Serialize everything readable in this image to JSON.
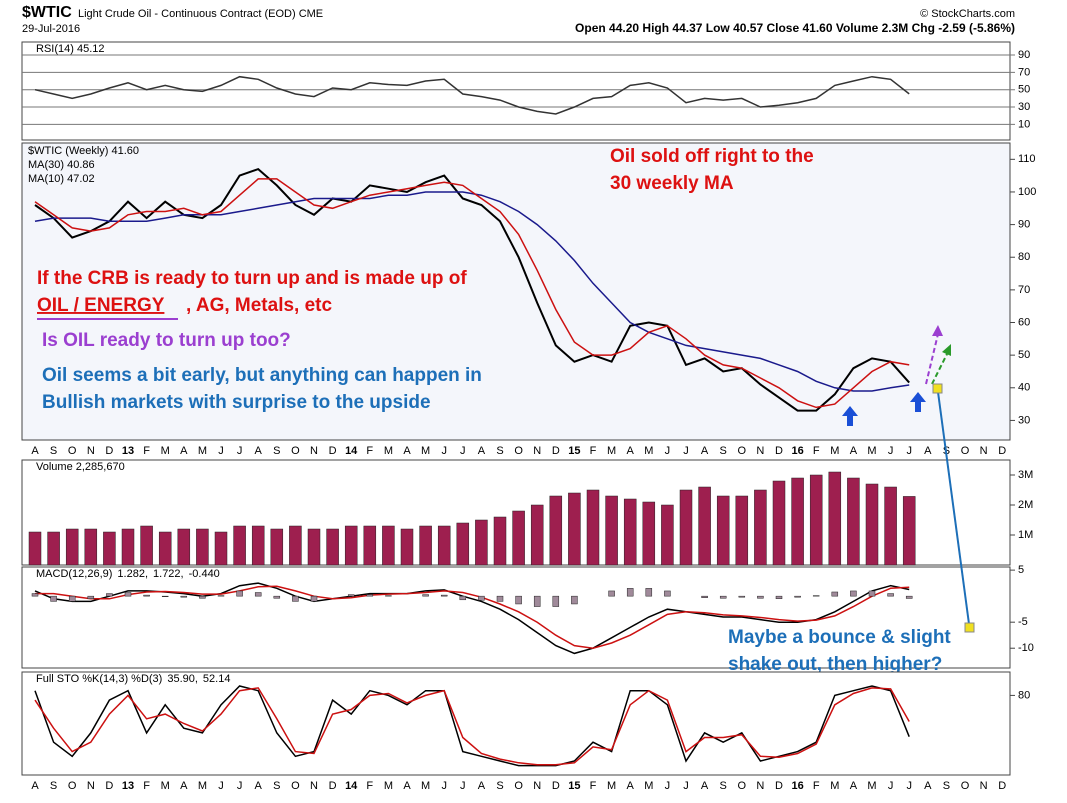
{
  "header": {
    "symbol": "$WTIC",
    "name": "Light Crude Oil - Continuous Contract (EOD) CME",
    "date": "29-Jul-2016",
    "quote": "Open 44.20  High 44.37  Low 40.57  Close 41.60  Volume 2.3M  Chg -2.59 (-5.86%)",
    "source": "© StockCharts.com"
  },
  "chart_data": [
    {
      "type": "line",
      "ylim": [
        -8,
        105
      ],
      "yticks": [
        10,
        30,
        50,
        70,
        90
      ],
      "grid": true,
      "series": [
        {
          "name": "RSI(14) 45.12",
          "color": "#333333",
          "values": [
            50,
            45,
            40,
            45,
            52,
            58,
            50,
            55,
            50,
            48,
            55,
            65,
            62,
            52,
            45,
            42,
            52,
            50,
            58,
            56,
            55,
            60,
            62,
            45,
            42,
            38,
            30,
            25,
            22,
            30,
            40,
            42,
            55,
            58,
            52,
            35,
            40,
            38,
            40,
            30,
            32,
            35,
            40,
            55,
            60,
            65,
            62,
            45.12,
            null,
            null,
            null,
            null,
            null
          ]
        }
      ]
    },
    {
      "type": "line",
      "ylim": [
        24,
        115
      ],
      "yticks": [
        30,
        40,
        50,
        60,
        70,
        80,
        90,
        100,
        110
      ],
      "categories": [
        "A",
        "S",
        "O",
        "N",
        "D",
        "13",
        "F",
        "M",
        "A",
        "M",
        "J",
        "J",
        "A",
        "S",
        "O",
        "N",
        "D",
        "14",
        "F",
        "M",
        "A",
        "M",
        "J",
        "J",
        "A",
        "S",
        "O",
        "N",
        "D",
        "15",
        "F",
        "M",
        "A",
        "M",
        "J",
        "J",
        "A",
        "S",
        "O",
        "N",
        "D",
        "16",
        "F",
        "M",
        "A",
        "M",
        "J",
        "J",
        "A",
        "S",
        "O",
        "N",
        "D"
      ],
      "series": [
        {
          "name": "$WTIC (Weekly) 41.60",
          "color": "#000000",
          "values": [
            96,
            92,
            86,
            88,
            91,
            97,
            92,
            97,
            93,
            92,
            96,
            105,
            107,
            102,
            96,
            93,
            98,
            97,
            102,
            101,
            100,
            103,
            105,
            98,
            96,
            91,
            80,
            66,
            53,
            48,
            50,
            48,
            59,
            60,
            59,
            47,
            49,
            45,
            46,
            41,
            37,
            33,
            33,
            38,
            46,
            49,
            48,
            41.6,
            null,
            null,
            null,
            null,
            null
          ]
        },
        {
          "name": "MA(30) 40.86",
          "color": "#1a1a8c",
          "values": [
            91,
            92,
            92,
            92,
            91,
            91,
            91,
            92,
            93,
            93,
            93,
            94,
            95,
            96,
            97,
            98,
            98,
            98,
            98,
            99,
            99,
            100,
            100,
            100,
            99,
            97,
            94,
            90,
            85,
            79,
            72,
            66,
            60,
            57,
            55,
            53,
            52,
            51,
            50,
            49,
            47,
            45,
            42,
            40,
            39,
            39,
            40,
            40.86,
            null,
            null,
            null,
            null,
            null
          ]
        },
        {
          "name": "MA(10) 47.02",
          "color": "#cc1111",
          "values": [
            97,
            93,
            89,
            88,
            89,
            93,
            94,
            94,
            95,
            93,
            94,
            99,
            104,
            104,
            100,
            96,
            95,
            97,
            99,
            100,
            101,
            102,
            103,
            102,
            98,
            94,
            87,
            76,
            64,
            54,
            50,
            50,
            52,
            57,
            59,
            55,
            50,
            47,
            46,
            43,
            40,
            36,
            34,
            35,
            40,
            45,
            48,
            47.02,
            null,
            null,
            null,
            null,
            null
          ]
        }
      ],
      "annotations": [
        {
          "text": "Oil sold off right to the",
          "color": "#dd1111"
        },
        {
          "text": "30 weekly MA",
          "color": "#dd1111"
        },
        {
          "text": "If the CRB is ready to turn up and is made up of",
          "color": "#dd1111"
        },
        {
          "text": "OIL / ENERGY",
          "color": "#dd1111"
        },
        {
          "text": ", AG, Metals, etc",
          "color": "#dd1111"
        },
        {
          "text": "Is OIL ready to turn up too?",
          "color": "#9b3fd0"
        },
        {
          "text": "Oil seems a bit early, but anything can happen in",
          "color": "#1d6fb8"
        },
        {
          "text": "Bullish markets with surprise to the upside",
          "color": "#1d6fb8"
        }
      ]
    },
    {
      "type": "bar",
      "ylim": [
        0,
        3500000
      ],
      "yticks": [
        {
          "value": 1000000,
          "label": "1M"
        },
        {
          "value": 2000000,
          "label": "2M"
        },
        {
          "value": 3000000,
          "label": "3M"
        }
      ],
      "series": [
        {
          "name": "Volume 2,285,670",
          "color": "#9e1f4f",
          "values": [
            1100000,
            1100000,
            1200000,
            1200000,
            1100000,
            1200000,
            1300000,
            1100000,
            1200000,
            1200000,
            1100000,
            1300000,
            1300000,
            1200000,
            1300000,
            1200000,
            1200000,
            1300000,
            1300000,
            1300000,
            1200000,
            1300000,
            1300000,
            1400000,
            1500000,
            1600000,
            1800000,
            2000000,
            2300000,
            2400000,
            2500000,
            2300000,
            2200000,
            2100000,
            2000000,
            2500000,
            2600000,
            2300000,
            2300000,
            2500000,
            2800000,
            2900000,
            3000000,
            3100000,
            2900000,
            2700000,
            2600000,
            2285670,
            null,
            null,
            null,
            null,
            null
          ]
        }
      ]
    },
    {
      "type": "line",
      "title": "MACD(12,26,9)",
      "ylim": [
        -13.8,
        5.6
      ],
      "yticks": [
        5,
        -5,
        -10
      ],
      "series": [
        {
          "name": "1.282,",
          "color": "#000000",
          "values": [
            1,
            -0.5,
            -1,
            -1,
            0,
            1,
            1,
            0.8,
            0.5,
            0,
            0.5,
            2,
            2.5,
            1.5,
            0,
            -1,
            -0.5,
            0,
            0.5,
            0.5,
            0.5,
            1,
            1.2,
            0,
            -1,
            -2.5,
            -4.5,
            -7,
            -9.5,
            -11,
            -10,
            -8,
            -6,
            -4,
            -2.5,
            -3,
            -3.5,
            -4,
            -4,
            -4.5,
            -5,
            -5,
            -4.5,
            -3,
            -1,
            1,
            2,
            1.282,
            null,
            null,
            null,
            null,
            null
          ]
        },
        {
          "name": "1.722,",
          "color": "#cc1111",
          "values": [
            0.5,
            0.5,
            0,
            -0.5,
            -0.5,
            0.3,
            0.8,
            0.9,
            0.7,
            0.4,
            0.4,
            1,
            1.8,
            1.9,
            1,
            0,
            -0.5,
            -0.3,
            0.2,
            0.4,
            0.5,
            0.7,
            1,
            0.7,
            -0.2,
            -1.5,
            -3,
            -5,
            -7.5,
            -9.5,
            -10,
            -9,
            -7.5,
            -5.5,
            -3.5,
            -3,
            -3.2,
            -3.6,
            -3.8,
            -4.1,
            -4.5,
            -4.8,
            -4.6,
            -3.8,
            -2,
            0,
            1.5,
            1.722,
            null,
            null,
            null,
            null,
            null
          ]
        },
        {
          "name": "-0.440",
          "color": "#a08a9a",
          "style": "bar",
          "values": [
            0.5,
            -1,
            -1,
            -0.5,
            0.5,
            0.7,
            0.2,
            -0.1,
            -0.2,
            -0.4,
            0.1,
            1,
            0.7,
            -0.4,
            -1,
            -1,
            0,
            0.3,
            0.3,
            0.1,
            0,
            0.3,
            0.2,
            -0.7,
            -0.8,
            -1,
            -1.5,
            -2,
            -2,
            -1.5,
            0,
            1,
            1.5,
            1.5,
            1,
            0,
            -0.3,
            -0.4,
            -0.2,
            -0.4,
            -0.5,
            -0.2,
            0.1,
            0.8,
            1,
            1,
            0.5,
            -0.44,
            null,
            null,
            null,
            null,
            null
          ]
        }
      ],
      "annotations": [
        {
          "text": "Maybe a bounce & slight",
          "color": "#1d6fb8"
        },
        {
          "text": "shake out, then higher?",
          "color": "#1d6fb8"
        }
      ]
    },
    {
      "type": "line",
      "title": "Full STO %K(14,3) %D(3)",
      "ylim": [
        -5,
        105
      ],
      "yticks": [
        80
      ],
      "categories": [
        "A",
        "S",
        "O",
        "N",
        "D",
        "13",
        "F",
        "M",
        "A",
        "M",
        "J",
        "J",
        "A",
        "S",
        "O",
        "N",
        "D",
        "14",
        "F",
        "M",
        "A",
        "M",
        "J",
        "J",
        "A",
        "S",
        "O",
        "N",
        "D",
        "15",
        "F",
        "M",
        "A",
        "M",
        "J",
        "J",
        "A",
        "S",
        "O",
        "N",
        "D",
        "16",
        "F",
        "M",
        "A",
        "M",
        "J",
        "J",
        "A",
        "S",
        "O",
        "N",
        "D"
      ],
      "series": [
        {
          "name": "35.90,",
          "color": "#000000",
          "values": [
            85,
            30,
            15,
            40,
            75,
            85,
            40,
            70,
            45,
            40,
            70,
            90,
            85,
            40,
            15,
            20,
            75,
            60,
            85,
            80,
            70,
            85,
            85,
            20,
            15,
            10,
            5,
            5,
            5,
            10,
            30,
            20,
            85,
            85,
            70,
            10,
            40,
            30,
            40,
            10,
            15,
            20,
            30,
            80,
            85,
            90,
            85,
            35.9,
            null,
            null,
            null,
            null,
            null
          ]
        },
        {
          "name": "52.14",
          "color": "#cc1111",
          "values": [
            75,
            45,
            20,
            30,
            60,
            80,
            55,
            60,
            50,
            42,
            60,
            85,
            88,
            55,
            20,
            18,
            60,
            65,
            80,
            82,
            72,
            80,
            85,
            35,
            18,
            12,
            8,
            6,
            6,
            8,
            25,
            22,
            70,
            85,
            75,
            20,
            35,
            35,
            38,
            15,
            14,
            18,
            28,
            70,
            82,
            88,
            87,
            52.14,
            null,
            null,
            null,
            null,
            null
          ]
        }
      ]
    }
  ]
}
